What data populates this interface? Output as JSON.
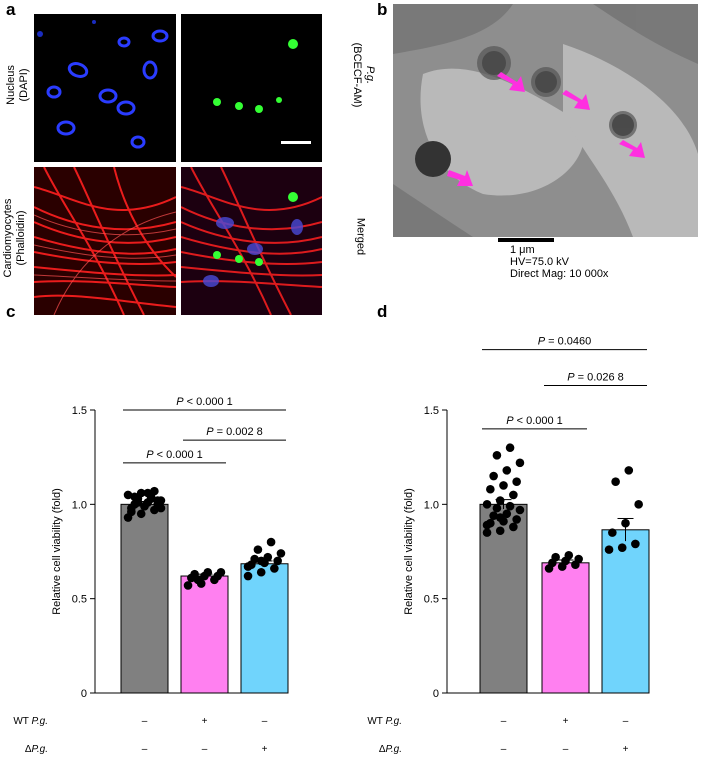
{
  "panels": {
    "a": "a",
    "b": "b",
    "c": "c",
    "d": "d"
  },
  "panel_a": {
    "left_top_label_line1": "Nucleus",
    "left_top_label_line2": "(DAPI)",
    "left_bottom_label_line1": "Cardiomyocytes",
    "left_bottom_label_line2": "(Phalloidin)",
    "right_top_label_line1": "P.g.",
    "right_top_label_line2": "(BCECF-AM)",
    "right_bottom_label": "Merged"
  },
  "panel_b": {
    "scale": "1 μm",
    "hv": "HV=75.0 kV",
    "mag": "Direct Mag: 10 000x",
    "arrow_color": "#ff2fe0"
  },
  "chart_data": [
    {
      "type": "bar",
      "panel": "c",
      "ylabel": "Relative cell viability (fold)",
      "ylim": [
        0,
        1.5
      ],
      "yticks": [
        "0",
        "0.5",
        "1.0",
        "1.5"
      ],
      "categories": [
        "WT P.g.- / ΔP.g.-",
        "WT P.g.+ / ΔP.g.-",
        "WT P.g.- / ΔP.g.+"
      ],
      "values": [
        1.0,
        0.62,
        0.685
      ],
      "errors": [
        0.015,
        0.01,
        0.015
      ],
      "colors": [
        "#808080",
        "#ff80f0",
        "#70d4fc"
      ],
      "points": [
        [
          0.93,
          0.95,
          0.97,
          0.98,
          0.99,
          1.0,
          1.0,
          1.01,
          1.02,
          1.03,
          1.04,
          1.05,
          1.06,
          1.07,
          0.96,
          0.99,
          1.02,
          1.04,
          1.06,
          0.98,
          1.01,
          1.03
        ],
        [
          0.57,
          0.58,
          0.6,
          0.61,
          0.62,
          0.62,
          0.63,
          0.64,
          0.64,
          0.6
        ],
        [
          0.62,
          0.64,
          0.66,
          0.68,
          0.69,
          0.7,
          0.71,
          0.72,
          0.74,
          0.76,
          0.8,
          0.67,
          0.7
        ]
      ],
      "significance": [
        {
          "text": "P < 0.000 1",
          "from": 0,
          "to": 1,
          "y": 1.22
        },
        {
          "text": "P = 0.002 8",
          "from": 1,
          "to": 2,
          "y": 1.34
        },
        {
          "text": "P < 0.000 1",
          "from": 0,
          "to": 2,
          "y": 1.5
        }
      ],
      "row_labels": [
        "WT P.g.",
        "ΔP.g."
      ],
      "wt": [
        "–",
        "+",
        "–"
      ],
      "delta": [
        "–",
        "–",
        "+"
      ]
    },
    {
      "type": "bar",
      "panel": "d",
      "ylabel": "Relative cell viability (fold)",
      "ylim": [
        0,
        1.5
      ],
      "yticks": [
        "0",
        "0.5",
        "1.0",
        "1.5"
      ],
      "categories": [
        "WT P.g.- / ΔP.g.-",
        "WT P.g.+ / ΔP.g.-",
        "WT P.g.- / ΔP.g.+"
      ],
      "values": [
        1.0,
        0.69,
        0.865
      ],
      "errors": [
        0.025,
        0.015,
        0.06
      ],
      "colors": [
        "#808080",
        "#ff80f0",
        "#70d4fc"
      ],
      "points": [
        [
          0.85,
          0.86,
          0.88,
          0.9,
          0.91,
          0.92,
          0.94,
          0.95,
          0.97,
          0.98,
          0.99,
          1.0,
          1.02,
          1.05,
          1.08,
          1.1,
          1.12,
          1.15,
          1.18,
          1.22,
          1.26,
          1.3,
          0.89,
          0.93
        ],
        [
          0.66,
          0.67,
          0.68,
          0.69,
          0.7,
          0.71,
          0.72,
          0.73
        ],
        [
          0.76,
          0.77,
          0.79,
          0.85,
          0.9,
          1.0,
          1.12,
          1.18
        ]
      ],
      "significance": [
        {
          "text": "P < 0.000 1",
          "from": 0,
          "to": 1,
          "y": 1.4
        },
        {
          "text": "P = 0.026 8",
          "from": 1,
          "to": 2,
          "y": 1.63
        },
        {
          "text": "P = 0.0460",
          "from": 0,
          "to": 2,
          "y": 1.82
        }
      ],
      "row_labels": [
        "WT P.g.",
        "ΔP.g."
      ],
      "wt": [
        "–",
        "+",
        "–"
      ],
      "delta": [
        "–",
        "–",
        "+"
      ]
    }
  ]
}
